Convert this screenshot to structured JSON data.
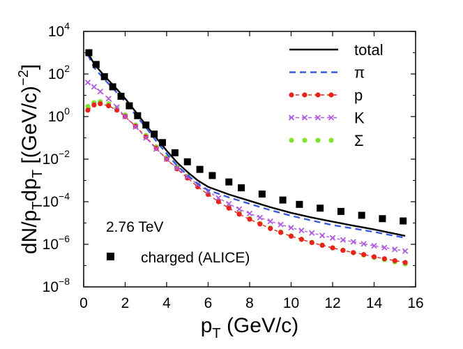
{
  "chart_data": {
    "type": "line",
    "title": "",
    "xlabel_main": "p",
    "xlabel_sub": "T",
    "xlabel_rest": " (GeV/c)",
    "ylabel_parts": [
      "dN/p",
      "T",
      "dp",
      "T",
      " [(GeV/c)",
      "−2",
      "]"
    ],
    "yscale": "log",
    "xlim": [
      0,
      16
    ],
    "ylim": [
      1e-08,
      10000
    ],
    "x_ticks": [
      0,
      2,
      4,
      6,
      8,
      10,
      12,
      14,
      16
    ],
    "x_tick_labels": [
      "0",
      "2",
      "4",
      "6",
      "8",
      "10",
      "12",
      "14",
      "16"
    ],
    "y_ticks_exp": [
      -8,
      -6,
      -4,
      -2,
      0,
      2,
      4
    ],
    "y_tick_base": "10",
    "y_tick_exps": [
      "−8",
      "−6",
      "−4",
      "−2",
      "0",
      "2",
      "4"
    ],
    "annotation": "2.76 TeV",
    "legend": [
      {
        "label": "total",
        "style": "solid",
        "color": "#000000"
      },
      {
        "label": "π",
        "style": "dashed",
        "color": "#3a5bdb"
      },
      {
        "label": "p",
        "style": "dash-dot-marker",
        "color": "#e8231b",
        "marker": "circle"
      },
      {
        "label": "K",
        "style": "dashed-marker",
        "color": "#b05be0",
        "marker": "x"
      },
      {
        "label": "Σ",
        "style": "marker",
        "color": "#7fe32b",
        "marker": "circle"
      }
    ],
    "data_legend": {
      "label": "charged (ALICE)",
      "marker": "square",
      "color": "#000000"
    },
    "series": [
      {
        "name": "total",
        "x": [
          0.2,
          0.5,
          1,
          1.5,
          2,
          2.5,
          3,
          3.5,
          4,
          4.5,
          5,
          5.5,
          6,
          7,
          8,
          9,
          10,
          11,
          12,
          13,
          14,
          15.5
        ],
        "values": [
          1000,
          300,
          80,
          25,
          7,
          1.7,
          0.4,
          0.1,
          0.025,
          0.007,
          0.0025,
          0.001,
          0.0005,
          0.00022,
          0.00011,
          5.5e-05,
          3e-05,
          1.8e-05,
          1.15e-05,
          7.5e-06,
          5e-06,
          2.5e-06
        ]
      },
      {
        "name": "π",
        "x": [
          0.2,
          0.5,
          1,
          1.5,
          2,
          2.5,
          3,
          3.5,
          4,
          4.5,
          5,
          5.5,
          6,
          7,
          8,
          9,
          10,
          11,
          12,
          13,
          14,
          15.5
        ],
        "values": [
          800,
          200,
          55,
          17,
          5,
          1.2,
          0.3,
          0.07,
          0.018,
          0.005,
          0.0018,
          0.0007,
          0.00035,
          0.00016,
          8e-05,
          4e-05,
          2.2e-05,
          1.3e-05,
          8e-06,
          5.5e-06,
          3.8e-06,
          2e-06
        ]
      },
      {
        "name": "p",
        "x": [
          0.2,
          0.5,
          0.8,
          1.2,
          1.6,
          2,
          2.5,
          3,
          3.5,
          4,
          4.5,
          5,
          5.5,
          6,
          6.5,
          7,
          7.5,
          8,
          8.5,
          9,
          9.5,
          10,
          10.5,
          11,
          11.5,
          12,
          12.5,
          13,
          13.5,
          14,
          14.5,
          15,
          15.5
        ],
        "values": [
          2,
          3.5,
          4,
          3.2,
          2,
          1,
          0.35,
          0.11,
          0.032,
          0.01,
          0.0035,
          0.0013,
          0.0005,
          0.00022,
          0.0001,
          5e-05,
          2.6e-05,
          1.5e-05,
          9e-06,
          5.5e-06,
          3.6e-06,
          2.4e-06,
          1.7e-06,
          1.2e-06,
          9e-07,
          6.8e-07,
          5.2e-07,
          4.1e-07,
          3.3e-07,
          2.6e-07,
          2.1e-07,
          1.7e-07,
          1.4e-07
        ]
      },
      {
        "name": "K",
        "x": [
          0.2,
          0.5,
          0.8,
          1.2,
          1.6,
          2,
          2.5,
          3,
          3.5,
          4,
          4.5,
          5,
          5.5,
          6,
          6.5,
          7,
          7.5,
          8,
          8.5,
          9,
          9.5,
          10,
          10.5,
          11,
          11.5,
          12,
          12.5,
          13,
          13.5,
          14,
          14.5,
          15,
          15.5
        ],
        "values": [
          40,
          25,
          15,
          7,
          2.8,
          1,
          0.33,
          0.1,
          0.03,
          0.01,
          0.0038,
          0.0015,
          0.00065,
          0.0003,
          0.00015,
          8e-05,
          4.5e-05,
          2.8e-05,
          1.8e-05,
          1.2e-05,
          8.5e-06,
          6e-06,
          4.5e-06,
          3.4e-06,
          2.6e-06,
          2e-06,
          1.6e-06,
          1.3e-06,
          1.05e-06,
          8.5e-07,
          7e-07,
          5.8e-07,
          4.8e-07
        ]
      },
      {
        "name": "Σ",
        "x": [
          0.2,
          0.5,
          0.8,
          1.2,
          1.6,
          2,
          2.5,
          3,
          3.5,
          4,
          4.5,
          5,
          5.5,
          6,
          6.5,
          7,
          7.5,
          8,
          8.5,
          9,
          9.5,
          10,
          10.5,
          11,
          11.5,
          12,
          12.5,
          13,
          13.5,
          14,
          14.5,
          15,
          15.5
        ],
        "values": [
          3,
          4.5,
          5,
          4,
          2.5,
          1.2,
          0.4,
          0.13,
          0.038,
          0.012,
          0.0042,
          0.0016,
          0.0006,
          0.00025,
          0.00011,
          5.4e-05,
          2.8e-05,
          1.6e-05,
          9.5e-06,
          5.9e-06,
          3.8e-06,
          2.5e-06,
          1.75e-06,
          1.25e-06,
          9.2e-07,
          6.9e-07,
          5.2e-07,
          4e-07,
          3.1e-07,
          2.4e-07,
          1.9e-07,
          1.5e-07,
          1.2e-07
        ]
      },
      {
        "name": "charged (ALICE)",
        "x": [
          0.25,
          0.6,
          1,
          1.4,
          1.8,
          2.2,
          2.6,
          3,
          3.4,
          3.8,
          4.4,
          5,
          5.6,
          6.2,
          7,
          7.6,
          8.6,
          9.6,
          10.4,
          11.4,
          12.4,
          13.4,
          14.4,
          15.4
        ],
        "values": [
          1000,
          280,
          75,
          25,
          9,
          3.2,
          1.1,
          0.4,
          0.15,
          0.06,
          0.02,
          0.0075,
          0.0033,
          0.0017,
          0.00085,
          0.00045,
          0.00023,
          0.00012,
          7.5e-05,
          5e-05,
          3.5e-05,
          2.3e-05,
          1.6e-05,
          1.25e-05
        ]
      }
    ]
  }
}
